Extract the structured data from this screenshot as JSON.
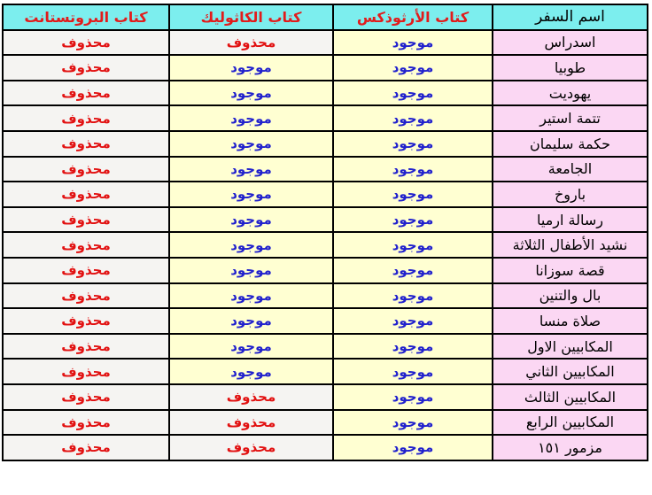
{
  "table": {
    "direction": "rtl",
    "columns": [
      {
        "key": "name",
        "label": "اسم السفر"
      },
      {
        "key": "orthodox",
        "label": "كتاب الأرثوذكس"
      },
      {
        "key": "catholic",
        "label": "كتاب الكاثوليك"
      },
      {
        "key": "protestant",
        "label": "كتاب البروتستانت"
      }
    ],
    "status_values": {
      "present": "موجود",
      "removed": "محذوف"
    },
    "colors": {
      "header_bg": "#7ceeee",
      "header_text": "#e21b1b",
      "header_name_text": "#000000",
      "name_cell_bg": "#fbd7f3",
      "present_bg": "#ffffd2",
      "present_text": "#2121cd",
      "removed_bg": "#f5f4f2",
      "removed_text": "#e21111",
      "border": "#000000",
      "page_bg": "#ffffff"
    },
    "rows": [
      {
        "name": "اسدراس",
        "orthodox": "موجود",
        "catholic": "محذوف",
        "protestant": "محذوف"
      },
      {
        "name": "طوبيا",
        "orthodox": "موجود",
        "catholic": "موجود",
        "protestant": "محذوف"
      },
      {
        "name": "يهوديت",
        "orthodox": "موجود",
        "catholic": "موجود",
        "protestant": "محذوف"
      },
      {
        "name": "تتمة استير",
        "orthodox": "موجود",
        "catholic": "موجود",
        "protestant": "محذوف"
      },
      {
        "name": "حكمة سليمان",
        "orthodox": "موجود",
        "catholic": "موجود",
        "protestant": "محذوف"
      },
      {
        "name": "الجامعة",
        "orthodox": "موجود",
        "catholic": "موجود",
        "protestant": "محذوف"
      },
      {
        "name": "باروخ",
        "orthodox": "موجود",
        "catholic": "موجود",
        "protestant": "محذوف"
      },
      {
        "name": "رسالة ارميا",
        "orthodox": "موجود",
        "catholic": "موجود",
        "protestant": "محذوف"
      },
      {
        "name": "نشيد الأطفال الثلاثة",
        "orthodox": "موجود",
        "catholic": "موجود",
        "protestant": "محذوف"
      },
      {
        "name": "قصة سوزانا",
        "orthodox": "موجود",
        "catholic": "موجود",
        "protestant": "محذوف"
      },
      {
        "name": "بال والتنين",
        "orthodox": "موجود",
        "catholic": "موجود",
        "protestant": "محذوف"
      },
      {
        "name": "صلاة منسا",
        "orthodox": "موجود",
        "catholic": "موجود",
        "protestant": "محذوف"
      },
      {
        "name": "المكابيين الاول",
        "orthodox": "موجود",
        "catholic": "موجود",
        "protestant": "محذوف"
      },
      {
        "name": "المكابيين الثاني",
        "orthodox": "موجود",
        "catholic": "موجود",
        "protestant": "محذوف"
      },
      {
        "name": "المكابيين الثالث",
        "orthodox": "موجود",
        "catholic": "محذوف",
        "protestant": "محذوف"
      },
      {
        "name": "المكابيين الرابع",
        "orthodox": "موجود",
        "catholic": "محذوف",
        "protestant": "محذوف"
      },
      {
        "name": "مزمور ١٥١",
        "orthodox": "موجود",
        "catholic": "محذوف",
        "protestant": "محذوف"
      }
    ]
  }
}
